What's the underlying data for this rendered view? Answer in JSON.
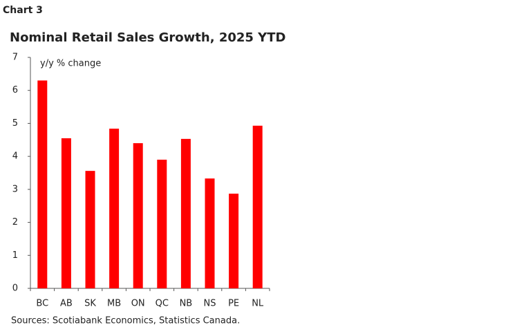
{
  "label": "Chart 3",
  "chart_data": {
    "type": "bar",
    "title": "Nominal Retail Sales Growth, 2025 YTD",
    "annotation": "y/y % change",
    "categories": [
      "BC",
      "AB",
      "SK",
      "MB",
      "ON",
      "QC",
      "NB",
      "NS",
      "PE",
      "NL"
    ],
    "values": [
      6.3,
      4.55,
      3.56,
      4.84,
      4.4,
      3.9,
      4.53,
      3.33,
      2.87,
      4.93
    ],
    "color": "#ff0000",
    "ylim": [
      0,
      7
    ],
    "yticks": [
      0,
      1,
      2,
      3,
      4,
      5,
      6,
      7
    ],
    "grid": false,
    "source": "Sources: Scotiabank Economics, Statistics Canada."
  }
}
